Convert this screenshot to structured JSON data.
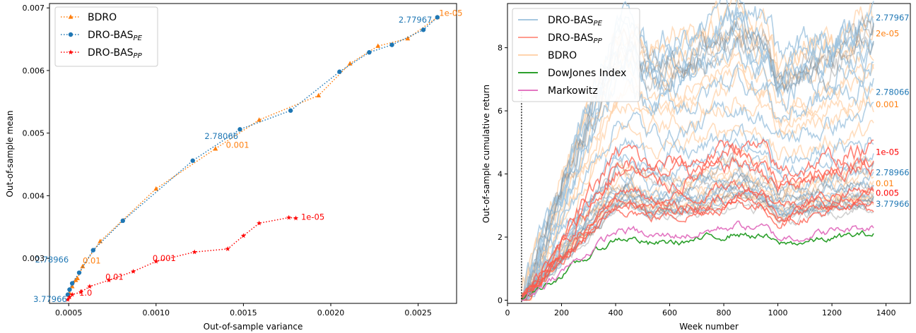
{
  "chart_data": [
    {
      "type": "scatter",
      "xlabel": "Out-of-sample variance",
      "ylabel": "Out-of-sample mean",
      "xlim": [
        0.00039,
        0.00272
      ],
      "ylim": [
        0.00228,
        0.00707
      ],
      "xticks": [
        "0.0005",
        "0.0010",
        "0.0015",
        "0.0020",
        "0.0025"
      ],
      "xtick_values": [
        0.0005,
        0.001,
        0.0015,
        0.002,
        0.0025
      ],
      "yticks": [
        "0.003",
        "0.004",
        "0.005",
        "0.006",
        "0.007"
      ],
      "ytick_values": [
        0.003,
        0.004,
        0.005,
        0.006,
        0.007
      ],
      "grid": false,
      "legend_position": "top-left",
      "series": [
        {
          "name": "BDRO",
          "name_sub": "",
          "color": "#ff7f0e",
          "marker": "triangle",
          "linestyle": "dotted",
          "x": [
            0.000505,
            0.00052,
            0.00054,
            0.00055,
            0.00058,
            0.00068,
            0.001,
            0.00134,
            0.00159,
            0.00193,
            0.00211,
            0.00227,
            0.00244,
            0.00261
          ],
          "y": [
            0.00244,
            0.00255,
            0.00265,
            0.00268,
            0.00287,
            0.00327,
            0.00411,
            0.00475,
            0.00521,
            0.0056,
            0.00611,
            0.00639,
            0.00651,
            0.00685
          ]
        },
        {
          "name": "DRO-BAS",
          "name_sub": "PE",
          "color": "#1f77b4",
          "marker": "circle",
          "linestyle": "dotted",
          "x": [
            0.000495,
            0.000505,
            0.00052,
            0.00056,
            0.00064,
            0.00081,
            0.00121,
            0.00148,
            0.00177,
            0.00205,
            0.00222,
            0.00235,
            0.00253,
            0.00261
          ],
          "y": [
            0.00242,
            0.0025,
            0.0026,
            0.00277,
            0.00313,
            0.0036,
            0.00456,
            0.00506,
            0.00536,
            0.00598,
            0.00629,
            0.00641,
            0.00665,
            0.00685
          ]
        },
        {
          "name": "DRO-BAS",
          "name_sub": "PP",
          "color": "#ff0000",
          "marker": "star",
          "linestyle": "dotted",
          "x": [
            0.000495,
            0.000505,
            0.00052,
            0.00057,
            0.00062,
            0.00073,
            0.00087,
            0.001,
            0.00122,
            0.00141,
            0.0015,
            0.00159,
            0.00176,
            0.0018
          ],
          "y": [
            0.00234,
            0.00238,
            0.00242,
            0.00246,
            0.00255,
            0.00265,
            0.00279,
            0.00295,
            0.0031,
            0.00315,
            0.00336,
            0.00356,
            0.00365,
            0.00364
          ]
        }
      ],
      "annotations": [
        {
          "text": "1e-05",
          "x": 0.00262,
          "y": 0.00692,
          "color": "#ff7f0e",
          "anchor": "start"
        },
        {
          "text": "2.77967",
          "x": 0.00258,
          "y": 0.00681,
          "color": "#1f77b4",
          "anchor": "end"
        },
        {
          "text": "2.78066",
          "x": 0.00147,
          "y": 0.00495,
          "color": "#1f77b4",
          "anchor": "end"
        },
        {
          "text": "0.001",
          "x": 0.0014,
          "y": 0.00481,
          "color": "#ff7f0e",
          "anchor": "start"
        },
        {
          "text": "2.78966",
          "x": 0.0005,
          "y": 0.00298,
          "color": "#1f77b4",
          "anchor": "end"
        },
        {
          "text": "0.01",
          "x": 0.00058,
          "y": 0.00296,
          "color": "#ff7f0e",
          "anchor": "start"
        },
        {
          "text": "3.77966",
          "x": 0.00049,
          "y": 0.00235,
          "color": "#1f77b4",
          "anchor": "end"
        },
        {
          "text": "1e-05",
          "x": 0.00183,
          "y": 0.00366,
          "color": "#ff0000",
          "anchor": "start"
        },
        {
          "text": "0.001",
          "x": 0.00098,
          "y": 0.003,
          "color": "#ff0000",
          "anchor": "start"
        },
        {
          "text": "0.01",
          "x": 0.00071,
          "y": 0.0027,
          "color": "#ff0000",
          "anchor": "start"
        },
        {
          "text": "1.0",
          "x": 0.00056,
          "y": 0.00245,
          "color": "#ff0000",
          "anchor": "start"
        }
      ]
    },
    {
      "type": "line",
      "xlabel": "Week number",
      "ylabel": "Out-of-sample cumulative return",
      "xlim": [
        0,
        1490
      ],
      "ylim": [
        -0.1,
        9.4
      ],
      "xticks": [
        "0",
        "200",
        "400",
        "600",
        "800",
        "1000",
        "1200",
        "1400"
      ],
      "xtick_values": [
        0,
        200,
        400,
        600,
        800,
        1000,
        1200,
        1400
      ],
      "yticks": [
        "0",
        "2",
        "4",
        "6",
        "8"
      ],
      "ytick_values": [
        0,
        2,
        4,
        6,
        8
      ],
      "grid": false,
      "legend_position": "top-left",
      "vline_week": 52,
      "legend": [
        {
          "name": "DRO-BAS",
          "sub": "PE",
          "color": "#a6c8e0"
        },
        {
          "name": "DRO-BAS",
          "sub": "PP",
          "color": "#ff9c8f"
        },
        {
          "name": "BDRO",
          "sub": "",
          "color": "#ffd3ad"
        },
        {
          "name": "DowJones Index",
          "sub": "",
          "color": "#2ca02c"
        },
        {
          "name": "Markowitz",
          "sub": "",
          "color": "#e377c2"
        }
      ],
      "series_groups": [
        {
          "name": "BDRO",
          "color": "#ffcfa3",
          "opacity": 0.7,
          "finals": [
            9.0,
            8.7,
            8.4,
            8.1,
            7.3,
            7.0,
            6.6,
            6.2,
            5.4,
            4.3,
            3.95,
            3.7,
            3.5,
            3.4,
            3.3,
            3.2
          ]
        },
        {
          "name": "DRO-BAS PE",
          "color": "#9ec3de",
          "opacity": 0.8,
          "finals": [
            9.05,
            8.85,
            8.55,
            8.3,
            8.0,
            7.6,
            6.9,
            5.95,
            5.1,
            4.7,
            4.15,
            3.85,
            3.6,
            3.45,
            3.3,
            3.2
          ]
        },
        {
          "name": "DRO-BAS grey",
          "color": "#7a7a7a",
          "opacity": 0.35,
          "finals": [
            8.5,
            8.2,
            7.9,
            4.2,
            3.75,
            3.5,
            3.35,
            3.2,
            3.1,
            3.0
          ]
        },
        {
          "name": "DRO-BAS PP",
          "color": "#ff5a4a",
          "opacity": 0.75,
          "finals": [
            4.8,
            4.5,
            4.2,
            3.6,
            3.3,
            3.1,
            3.0
          ]
        },
        {
          "name": "DowJones Index",
          "color": "#2ca02c",
          "opacity": 1.0,
          "finals": [
            2.1
          ]
        },
        {
          "name": "Markowitz",
          "color": "#e377c2",
          "opacity": 1.0,
          "finals": [
            2.35
          ]
        }
      ],
      "annotations": [
        {
          "text": "2.77967",
          "y": 8.95,
          "color": "#1f77b4"
        },
        {
          "text": "2e-05",
          "y": 8.45,
          "color": "#ff7f0e"
        },
        {
          "text": "2.78066",
          "y": 6.6,
          "color": "#1f77b4"
        },
        {
          "text": "0.001",
          "y": 6.2,
          "color": "#ff7f0e"
        },
        {
          "text": "1e-05",
          "y": 4.7,
          "color": "#ff0000"
        },
        {
          "text": "2.78966",
          "y": 4.05,
          "color": "#1f77b4"
        },
        {
          "text": "0.01",
          "y": 3.7,
          "color": "#ff7f0e"
        },
        {
          "text": "0.005",
          "y": 3.4,
          "color": "#ff0000"
        },
        {
          "text": "3.77966",
          "y": 3.05,
          "color": "#1f77b4"
        }
      ]
    }
  ]
}
